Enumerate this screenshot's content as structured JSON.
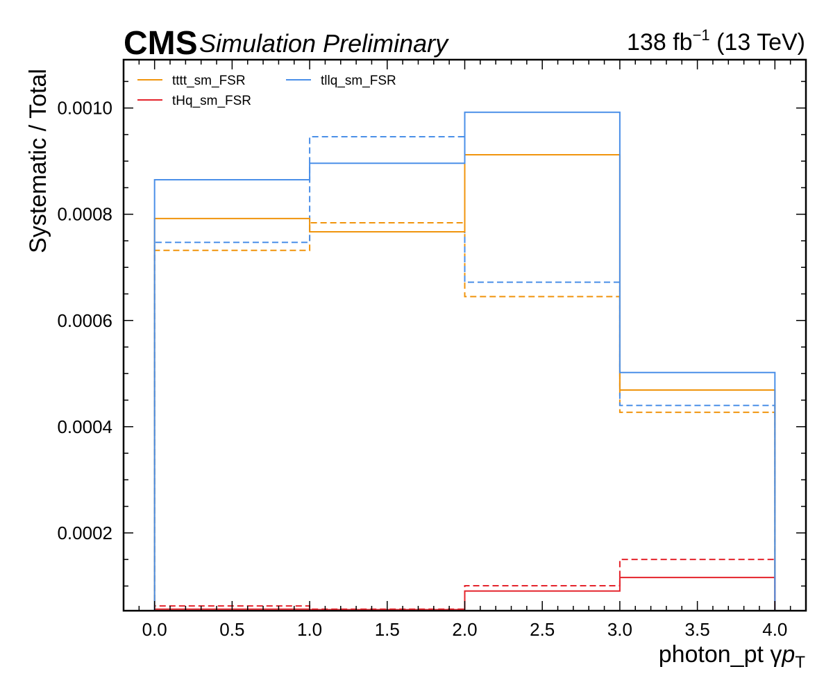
{
  "header": {
    "experiment": "CMS",
    "status": "Simulation Preliminary",
    "lumi_value": "138 fb",
    "lumi_exponent": "−1",
    "energy": "(13 TeV)"
  },
  "chart_data": {
    "type": "line",
    "style": "step-histogram",
    "xlabel": "photon_pt",
    "xlabel_symbol": "γ",
    "xlabel_var": "p",
    "xlabel_sub": "T",
    "ylabel": "Systematic / Total",
    "xlim": [
      -0.2,
      4.2
    ],
    "ylim": [
      5.35e-05,
      0.001091
    ],
    "x_ticks": [
      "0.0",
      "0.5",
      "1.0",
      "1.5",
      "2.0",
      "2.5",
      "3.0",
      "3.5",
      "4.0"
    ],
    "y_ticks": [
      "0.0002",
      "0.0004",
      "0.0006",
      "0.0008",
      "0.0010"
    ],
    "bin_edges": [
      0,
      1,
      2,
      3,
      4
    ],
    "legend_position": "top-left",
    "series": [
      {
        "name": "tttt_sm_FSR",
        "color": "#f0940c",
        "linestyle": "solid",
        "in_legend": true,
        "values": [
          0.000792,
          0.000767,
          0.000912,
          0.000469
        ]
      },
      {
        "name": "tHq_sm_FSR",
        "color": "#e4232b",
        "linestyle": "solid",
        "in_legend": true,
        "values": [
          5.65e-05,
          5.55e-05,
          9.05e-05,
          0.000116
        ]
      },
      {
        "name": "tllq_sm_FSR",
        "color": "#4a8fe8",
        "linestyle": "solid",
        "in_legend": true,
        "values": [
          0.000865,
          0.000896,
          0.000992,
          0.000502
        ]
      },
      {
        "name": "",
        "color": "#f0940c",
        "linestyle": "dashed",
        "in_legend": false,
        "values": [
          0.000732,
          0.000784,
          0.000645,
          0.000427
        ]
      },
      {
        "name": "",
        "color": "#e4232b",
        "linestyle": "dashed",
        "in_legend": false,
        "values": [
          6.25e-05,
          5.65e-05,
          0.0001005,
          0.00015
        ]
      },
      {
        "name": "",
        "color": "#4a8fe8",
        "linestyle": "dashed",
        "in_legend": false,
        "values": [
          0.000747,
          0.000946,
          0.000672,
          0.00044
        ]
      }
    ]
  }
}
